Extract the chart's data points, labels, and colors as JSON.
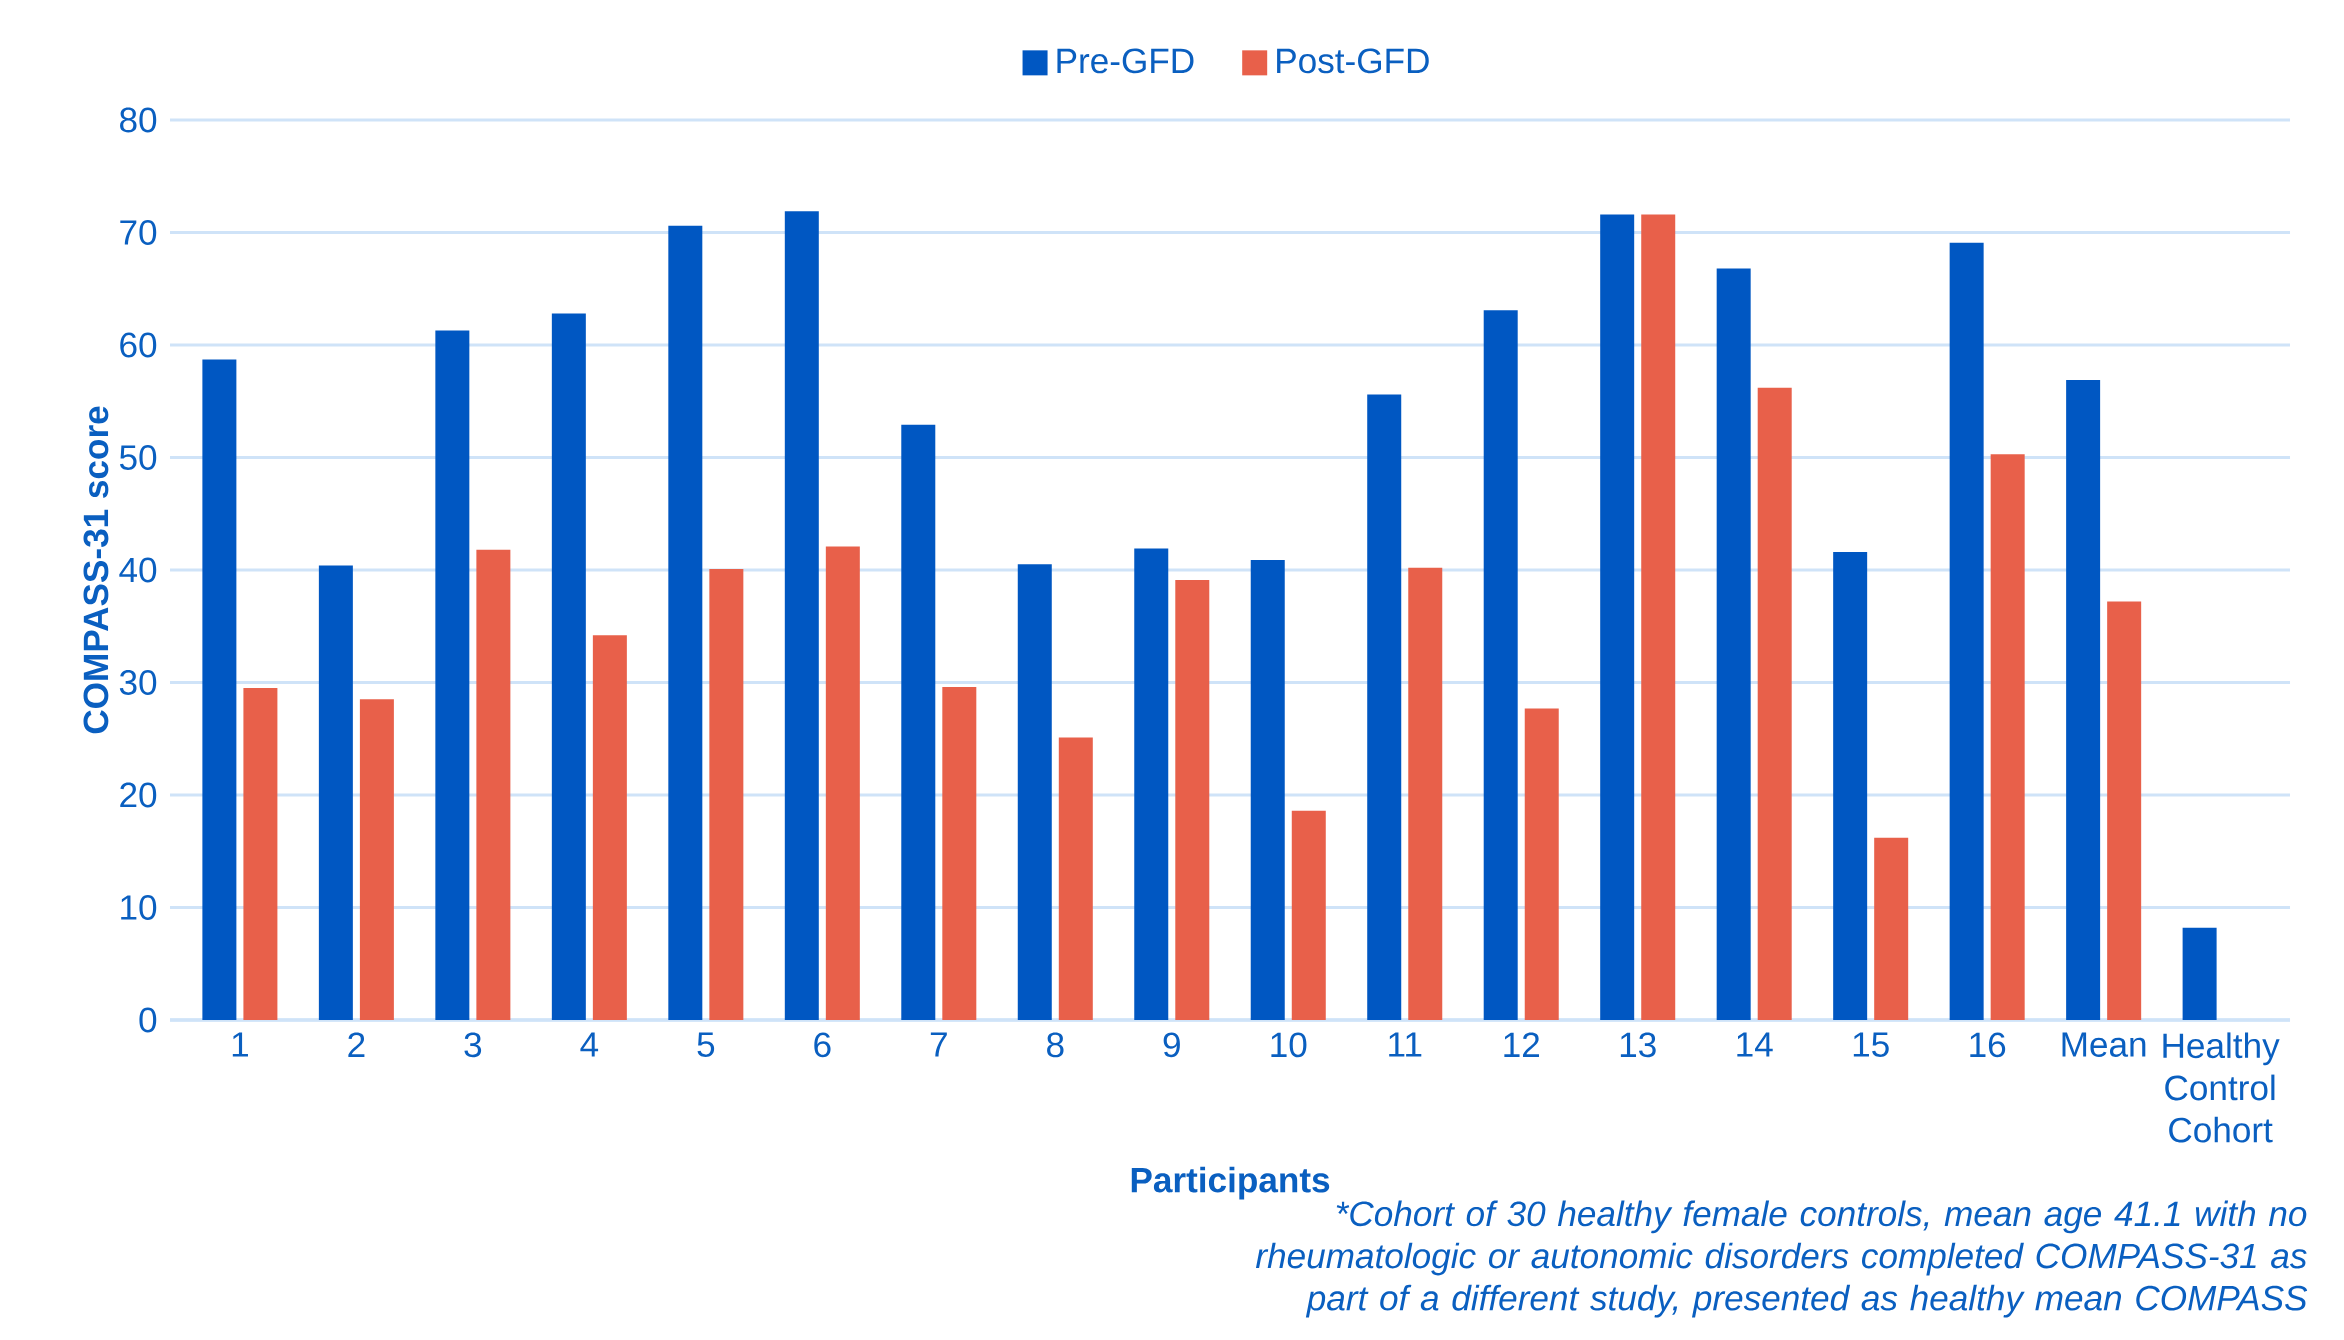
{
  "chart_data": {
    "type": "bar",
    "xlabel": "Participants",
    "ylabel": "COMPASS-31 score",
    "categories": [
      "1",
      "2",
      "3",
      "4",
      "5",
      "6",
      "7",
      "8",
      "9",
      "10",
      "11",
      "12",
      "13",
      "14",
      "15",
      "16",
      "Mean",
      "Healthy Control Cohort"
    ],
    "series": [
      {
        "name": "Pre-GFD",
        "color": "#0057c2",
        "values": [
          58.7,
          40.4,
          61.3,
          62.8,
          70.6,
          71.9,
          52.9,
          40.5,
          41.9,
          40.9,
          55.6,
          63.1,
          71.6,
          66.8,
          41.6,
          69.1,
          56.9,
          8.2
        ]
      },
      {
        "name": "Post-GFD",
        "color": "#e8604a",
        "values": [
          29.5,
          28.5,
          41.8,
          34.2,
          40.1,
          42.1,
          29.6,
          25.1,
          39.1,
          18.6,
          40.2,
          27.7,
          71.6,
          56.2,
          16.2,
          50.3,
          37.2,
          null
        ]
      }
    ],
    "ylim": [
      0,
      80
    ],
    "yticks": [
      0,
      10,
      20,
      30,
      40,
      50,
      60,
      70,
      80
    ],
    "grid": "y",
    "legend": "top",
    "annotations": [
      "*Cohort of 30 healthy female controls, mean age 41.1 with no rheumatologic or autonomic disorders completed COMPASS-31 as part of a different study, presented as healthy mean COMPASS"
    ]
  }
}
